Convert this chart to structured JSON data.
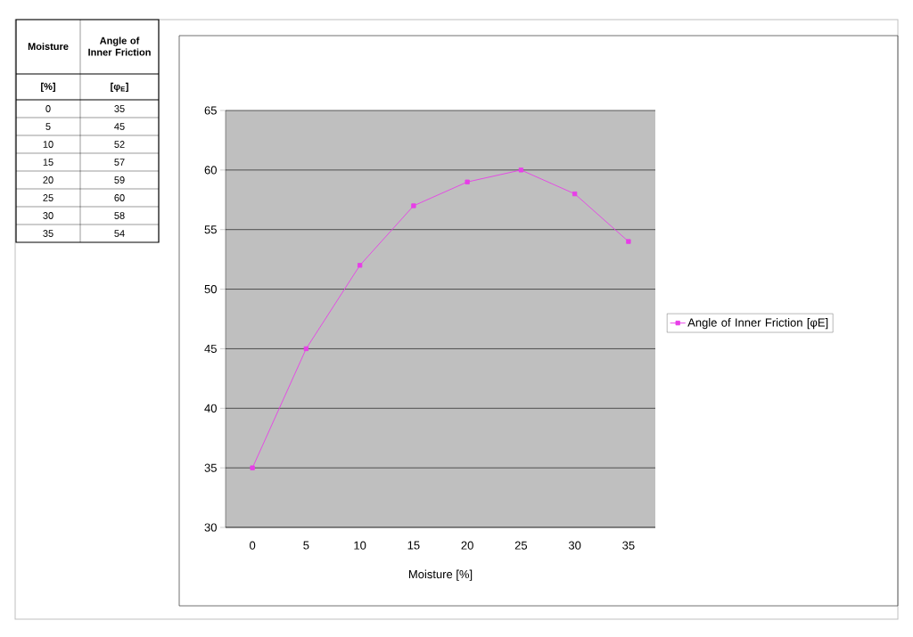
{
  "chart_data": {
    "type": "line",
    "xlabel": "Moisture [%]",
    "categories": [
      "0",
      "5",
      "10",
      "15",
      "20",
      "25",
      "30",
      "35"
    ],
    "series": [
      {
        "name": "Angle of Inner Friction [φE]",
        "color": "#e83ee8",
        "values": [
          35,
          45,
          52,
          57,
          59,
          60,
          58,
          54
        ]
      }
    ],
    "ylim": [
      30,
      65
    ],
    "yticks": [
      30,
      35,
      40,
      45,
      50,
      55,
      60,
      65
    ],
    "grid": "y",
    "legend": "right",
    "marker": "square",
    "line_style": "solid",
    "annotations": [
      "Moisture",
      "Angle of Inner Friction",
      "[%]",
      "[φ$_{E}$]",
      "35",
      "45",
      "52",
      "57",
      "59",
      "60",
      "58",
      "54"
    ]
  }
}
